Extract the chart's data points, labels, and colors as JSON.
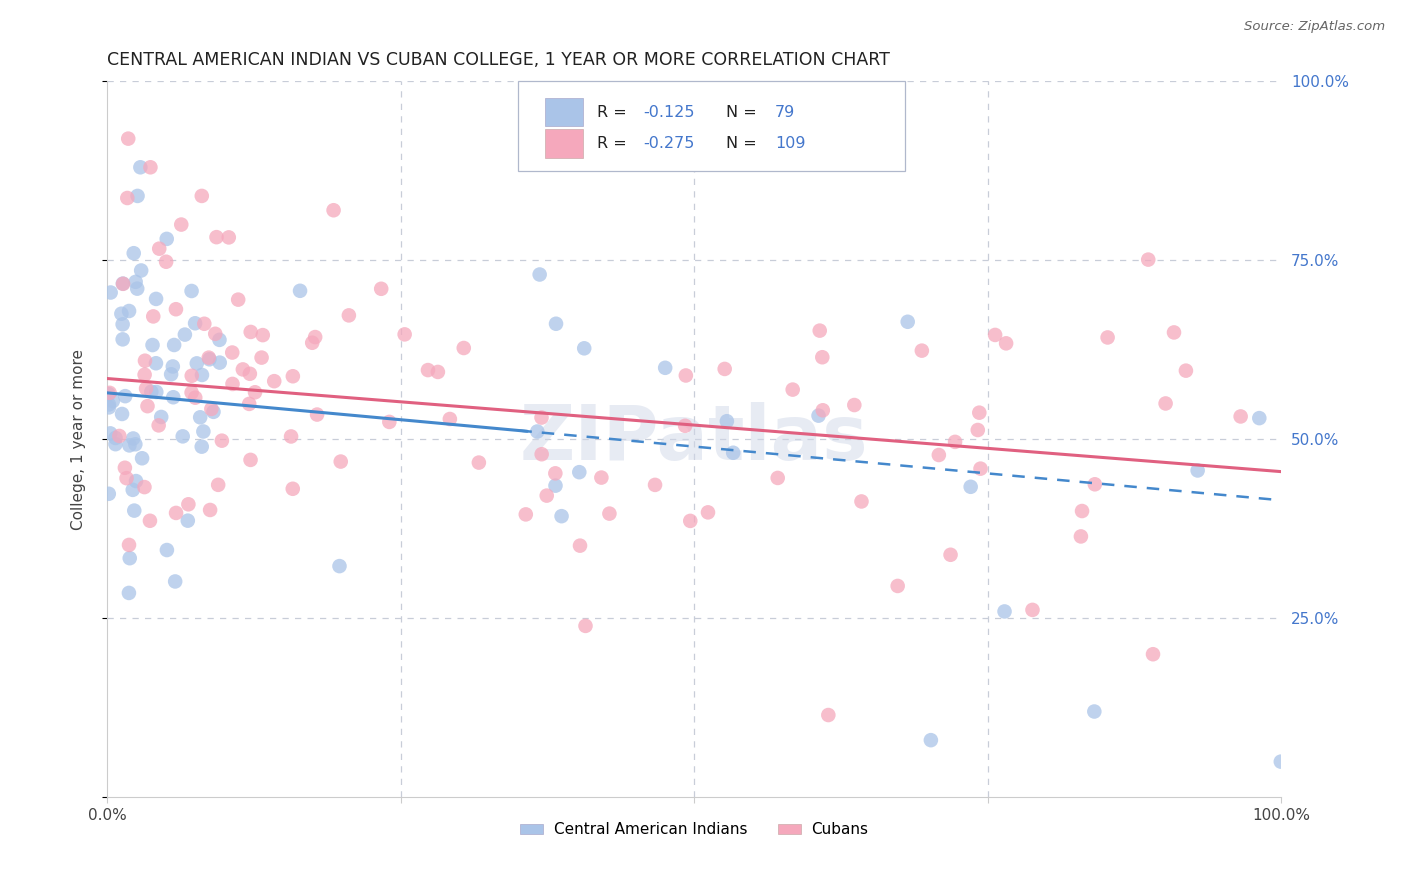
{
  "title": "CENTRAL AMERICAN INDIAN VS CUBAN COLLEGE, 1 YEAR OR MORE CORRELATION CHART",
  "source": "Source: ZipAtlas.com",
  "ylabel": "College, 1 year or more",
  "legend_label1": "Central American Indians",
  "legend_label2": "Cubans",
  "color_blue": "#aac4e8",
  "color_pink": "#f5a8bc",
  "line_blue": "#4488cc",
  "line_pink": "#e06080",
  "watermark": "ZIPatlas",
  "xlim": [
    0,
    1
  ],
  "ylim": [
    0,
    1
  ],
  "blue_R": -0.125,
  "blue_N": 79,
  "pink_R": -0.275,
  "pink_N": 109,
  "seed": 7,
  "blue_line_y0": 0.565,
  "blue_line_y1": 0.415,
  "pink_line_y0": 0.585,
  "pink_line_y1": 0.455
}
